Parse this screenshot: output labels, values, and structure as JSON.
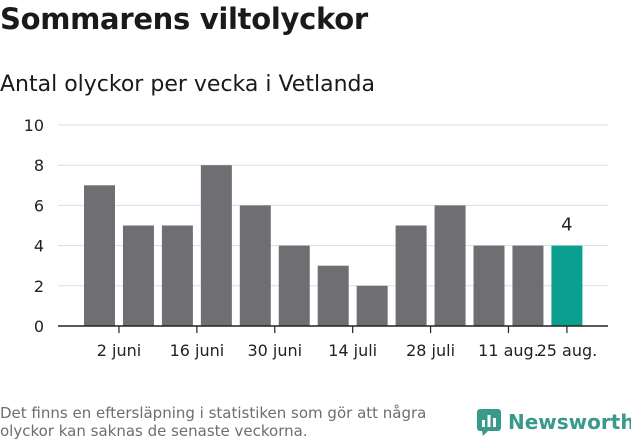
{
  "title": "Sommarens viltolyckor",
  "subtitle": "Antal olyckor per vecka i Vetlanda",
  "footnote": "Det finns en eftersläpning i statistiken som gör att några olyckor kan saknas de senaste veckorna.",
  "brand": {
    "name": "Newsworthy",
    "icon": "newsworthy-logo-icon",
    "color": "#3a9a8a"
  },
  "chart_data": {
    "type": "bar",
    "title": "Antal olyckor per vecka i Vetlanda",
    "xlabel": "",
    "ylabel": "",
    "ylim": [
      0,
      10
    ],
    "yticks": [
      0,
      2,
      4,
      6,
      8,
      10
    ],
    "grid": true,
    "values": [
      7,
      5,
      5,
      8,
      6,
      4,
      3,
      2,
      5,
      6,
      4,
      4,
      4
    ],
    "xtick_labels": [
      {
        "index": 0.5,
        "label": "2 juni"
      },
      {
        "index": 2.5,
        "label": "16 juni"
      },
      {
        "index": 4.5,
        "label": "30 juni"
      },
      {
        "index": 6.5,
        "label": "14 juli"
      },
      {
        "index": 8.5,
        "label": "28 juli"
      },
      {
        "index": 10.5,
        "label": "11 aug."
      },
      {
        "index": 12,
        "label": "25 aug."
      }
    ],
    "highlight_index": 12,
    "highlight_label": "4",
    "bar_color": "#6f6e73",
    "highlight_color": "#0a9f8f",
    "grid_color": "#dddddd"
  }
}
